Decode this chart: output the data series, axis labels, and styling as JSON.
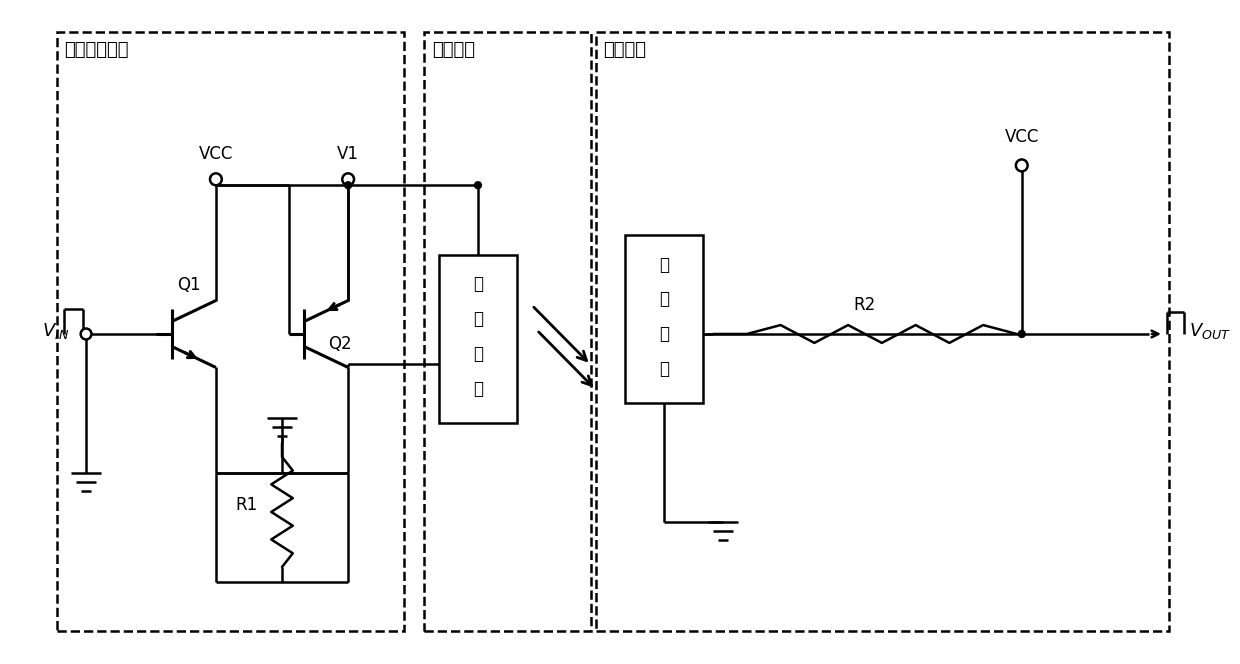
{
  "background_color": "#ffffff",
  "box1_label": "输入控制电路",
  "box2_label": "光耦电路",
  "box3_label": "输出电路",
  "faguang_label": [
    "发",
    "光",
    "电",
    "路"
  ],
  "shouguan_label": [
    "受",
    "光",
    "电",
    "路"
  ],
  "lw": 1.8,
  "lw2": 2.2,
  "fs": 12,
  "fs_label": 13
}
